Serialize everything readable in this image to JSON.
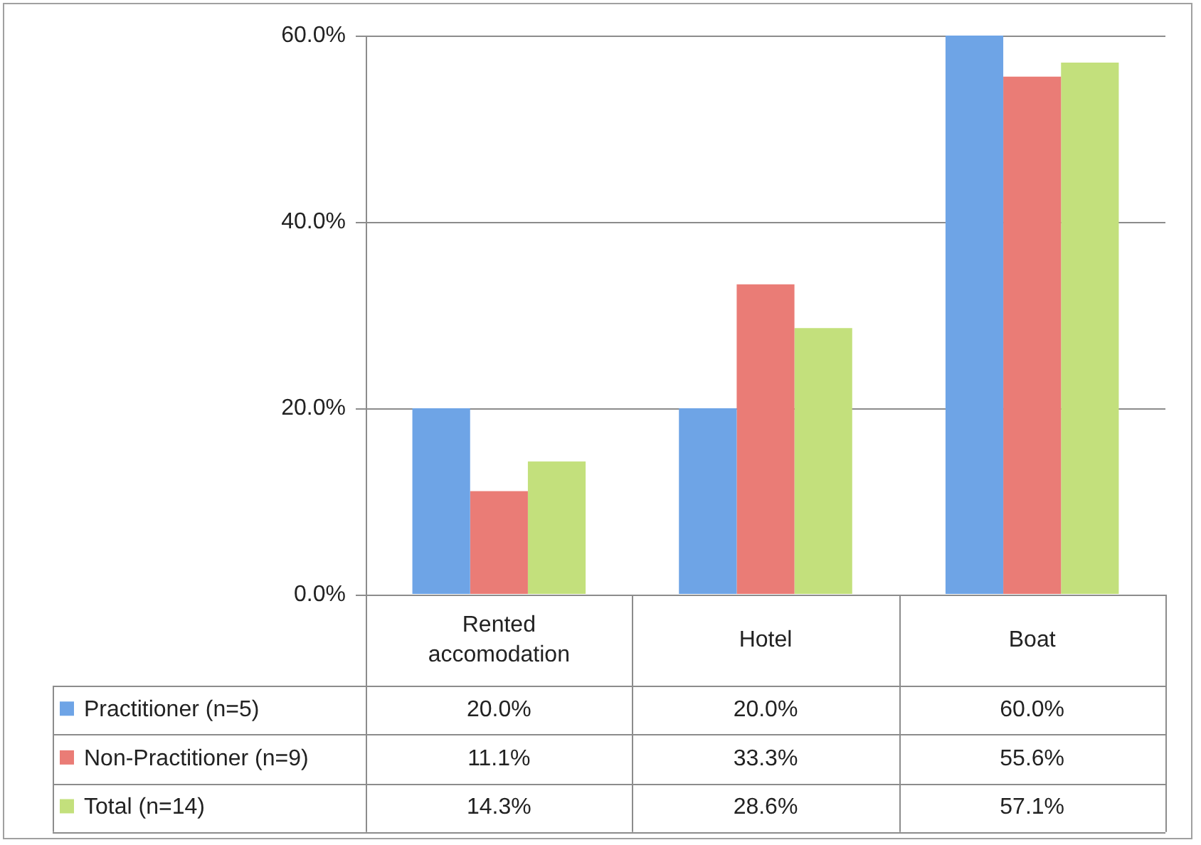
{
  "chart_data": {
    "type": "bar",
    "categories": [
      "Rented accomodation",
      "Hotel",
      "Boat"
    ],
    "series": [
      {
        "name": "Practitioner (n=5)",
        "color": "#6ea4e6",
        "values": [
          20.0,
          20.0,
          60.0
        ],
        "value_labels": [
          "20.0%",
          "20.0%",
          "60.0%"
        ]
      },
      {
        "name": "Non-Practitioner (n=9)",
        "color": "#ea7c76",
        "values": [
          11.1,
          33.3,
          55.6
        ],
        "value_labels": [
          "11.1%",
          "33.3%",
          "55.6%"
        ]
      },
      {
        "name": "Total (n=14)",
        "color": "#c3e07c",
        "values": [
          14.3,
          28.6,
          57.1
        ],
        "value_labels": [
          "14.3%",
          "28.6%",
          "57.1%"
        ]
      }
    ],
    "ylim": [
      0,
      60
    ],
    "yticks": [
      {
        "value": 0,
        "label": "0.0%"
      },
      {
        "value": 20,
        "label": "20.0%"
      },
      {
        "value": 40,
        "label": "40.0%"
      },
      {
        "value": 60,
        "label": "60.0%"
      }
    ],
    "grid": "y",
    "legend": "bottom"
  }
}
